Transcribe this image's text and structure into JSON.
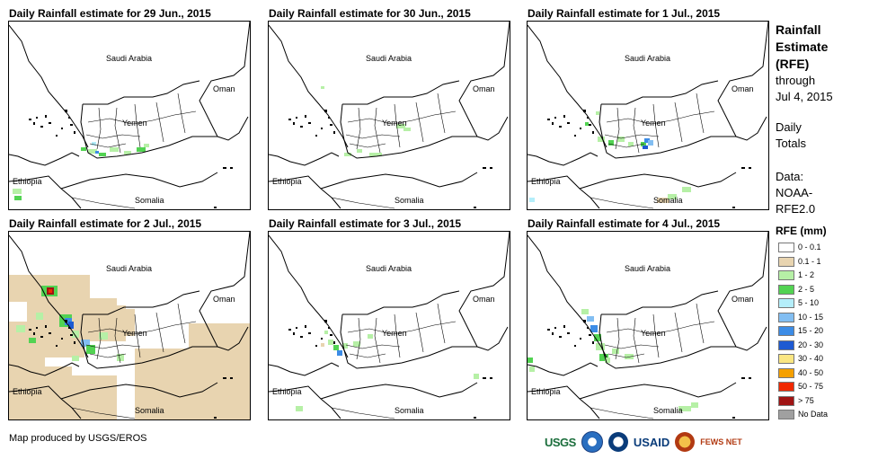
{
  "panels": [
    {
      "title": "Daily Rainfall estimate for 29 Jun., 2015",
      "rain": "p1"
    },
    {
      "title": "Daily Rainfall estimate for 30 Jun., 2015",
      "rain": "p2"
    },
    {
      "title": "Daily Rainfall estimate for 1 Jul., 2015",
      "rain": "p3"
    },
    {
      "title": "Daily Rainfall estimate for 2 Jul., 2015",
      "rain": "p4"
    },
    {
      "title": "Daily Rainfall estimate for 3 Jul., 2015",
      "rain": "p5"
    },
    {
      "title": "Daily Rainfall estimate for 4 Jul., 2015",
      "rain": "p6"
    }
  ],
  "labels": {
    "saudi": "Saudi Arabia",
    "oman": "Oman",
    "yemen": "Yemen",
    "ethiopia": "Ethiopia",
    "somalia": "Somalia"
  },
  "legend": {
    "title_line1": "Rainfall",
    "title_line2": "Estimate",
    "title_line3": "(RFE)",
    "through": "through",
    "date": "Jul 4, 2015",
    "daily": "Daily",
    "totals": "Totals",
    "data_label": "Data:",
    "data_source1": "NOAA-",
    "data_source2": "RFE2.0",
    "rfe_units": "RFE (mm)",
    "classes": [
      {
        "label": "0 - 0.1",
        "color": "#ffffff"
      },
      {
        "label": "0.1 - 1",
        "color": "#e8d4b0"
      },
      {
        "label": "1 - 2",
        "color": "#b6f0a6"
      },
      {
        "label": "2 - 5",
        "color": "#52d352"
      },
      {
        "label": "5 - 10",
        "color": "#b4eefa"
      },
      {
        "label": "10 - 15",
        "color": "#82bef2"
      },
      {
        "label": "15 - 20",
        "color": "#3c8ce6"
      },
      {
        "label": "20 - 30",
        "color": "#1e5ad2"
      },
      {
        "label": "30 - 40",
        "color": "#fae682"
      },
      {
        "label": "40 - 50",
        "color": "#f5a000"
      },
      {
        "label": "50 - 75",
        "color": "#f02800"
      },
      {
        "label": "> 75",
        "color": "#a01414"
      },
      {
        "label": "No Data",
        "color": "#a0a0a0"
      }
    ]
  },
  "credit": "Map produced by USGS/EROS",
  "logos": {
    "usgs": "USGS",
    "usaid": "USAID",
    "fews": "FEWS NET"
  }
}
